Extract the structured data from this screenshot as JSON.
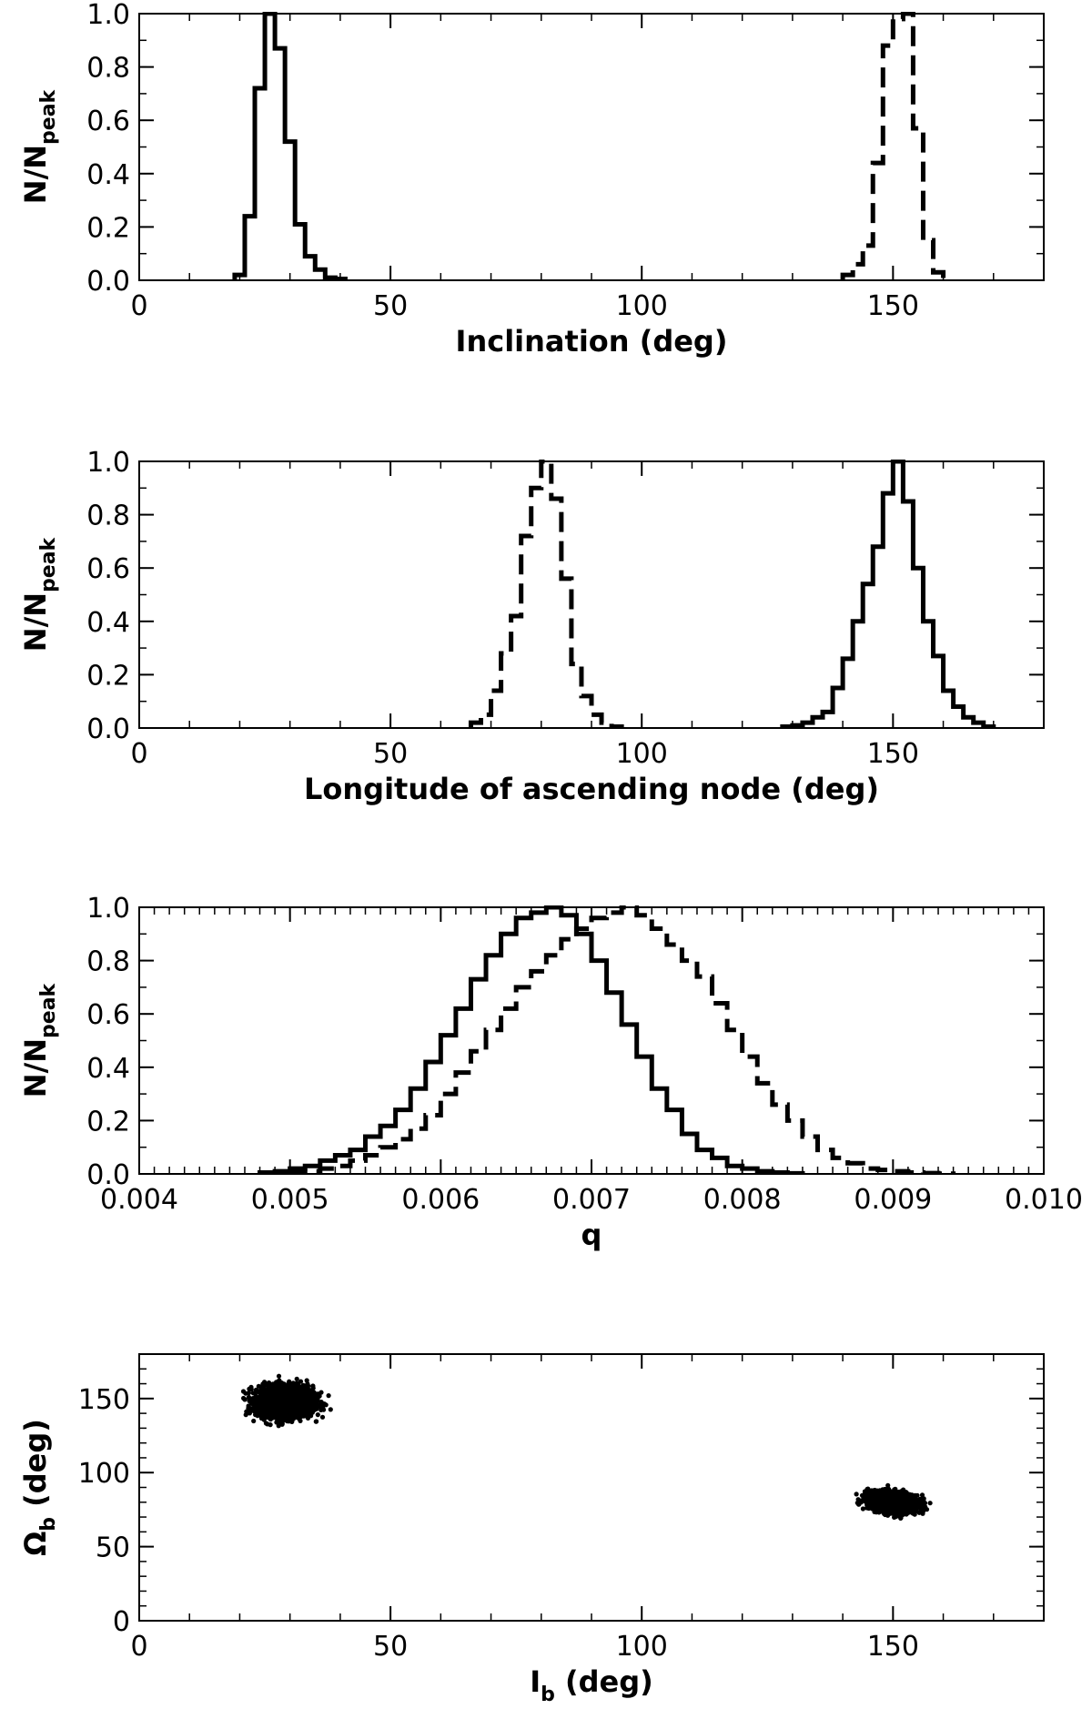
{
  "chart_data": [
    {
      "type": "step-histogram",
      "xlabel": "Inclination (deg)",
      "ylabel": "N/N",
      "ylabel_sub": "peak",
      "xlim": [
        0,
        180
      ],
      "ylim": [
        0,
        1.0
      ],
      "xticks": [
        0,
        50,
        100,
        150
      ],
      "xtick_labels": [
        "0",
        "50",
        "100",
        "150"
      ],
      "yticks": [
        0,
        0.2,
        0.4,
        0.6,
        0.8,
        1.0
      ],
      "ytick_labels": [
        "0.0",
        "0.2",
        "0.4",
        "0.6",
        "0.8",
        "1.0"
      ],
      "x_minor_step": 10,
      "y_minor_step": 0.1,
      "series": [
        {
          "name": "solid",
          "style": "solid",
          "edges": [
            19,
            21,
            23,
            25,
            27,
            29,
            31,
            33,
            35,
            37,
            39,
            41
          ],
          "values": [
            0.02,
            0.24,
            0.72,
            1.0,
            0.87,
            0.52,
            0.21,
            0.09,
            0.04,
            0.01,
            0.005
          ]
        },
        {
          "name": "dashed",
          "style": "dashed",
          "edges": [
            140,
            142,
            144,
            146,
            148,
            150,
            152,
            154,
            156,
            158,
            160
          ],
          "values": [
            0.02,
            0.06,
            0.13,
            0.44,
            0.88,
            0.98,
            1.0,
            0.57,
            0.15,
            0.03
          ]
        }
      ]
    },
    {
      "type": "step-histogram",
      "xlabel": "Longitude of ascending node (deg)",
      "ylabel": "N/N",
      "ylabel_sub": "peak",
      "xlim": [
        0,
        180
      ],
      "ylim": [
        0,
        1.0
      ],
      "xticks": [
        0,
        50,
        100,
        150
      ],
      "xtick_labels": [
        "0",
        "50",
        "100",
        "150"
      ],
      "yticks": [
        0,
        0.2,
        0.4,
        0.6,
        0.8,
        1.0
      ],
      "ytick_labels": [
        "0.0",
        "0.2",
        "0.4",
        "0.6",
        "0.8",
        "1.0"
      ],
      "x_minor_step": 10,
      "y_minor_step": 0.1,
      "series": [
        {
          "name": "dashed",
          "style": "dashed",
          "edges": [
            66,
            68,
            70,
            72,
            74,
            76,
            78,
            80,
            82,
            84,
            86,
            88,
            90,
            92,
            94,
            96
          ],
          "values": [
            0.02,
            0.05,
            0.14,
            0.28,
            0.42,
            0.72,
            0.9,
            1.0,
            0.86,
            0.56,
            0.24,
            0.12,
            0.05,
            0.02,
            0.005
          ]
        },
        {
          "name": "solid",
          "style": "solid",
          "edges": [
            128,
            130,
            132,
            134,
            136,
            138,
            140,
            142,
            144,
            146,
            148,
            150,
            152,
            154,
            156,
            158,
            160,
            162,
            164,
            166,
            168,
            170
          ],
          "values": [
            0.005,
            0.01,
            0.02,
            0.04,
            0.06,
            0.15,
            0.26,
            0.4,
            0.54,
            0.68,
            0.88,
            1.0,
            0.85,
            0.6,
            0.4,
            0.27,
            0.14,
            0.08,
            0.04,
            0.02,
            0.005
          ]
        }
      ]
    },
    {
      "type": "step-histogram",
      "xlabel": "q",
      "ylabel": "N/N",
      "ylabel_sub": "peak",
      "xlim": [
        0.004,
        0.01
      ],
      "ylim": [
        0,
        1.0
      ],
      "xticks": [
        0.004,
        0.005,
        0.006,
        0.007,
        0.008,
        0.009,
        0.01
      ],
      "xtick_labels": [
        "0.004",
        "0.005",
        "0.006",
        "0.007",
        "0.008",
        "0.009",
        "0.010"
      ],
      "yticks": [
        0,
        0.2,
        0.4,
        0.6,
        0.8,
        1.0
      ],
      "ytick_labels": [
        "0.0",
        "0.2",
        "0.4",
        "0.6",
        "0.8",
        "1.0"
      ],
      "x_minor_step": 0.0001,
      "y_minor_step": 0.1,
      "series": [
        {
          "name": "solid",
          "style": "solid",
          "edges": [
            0.0048,
            0.0049,
            0.005,
            0.0051,
            0.0052,
            0.0053,
            0.0054,
            0.0055,
            0.0056,
            0.0057,
            0.0058,
            0.0059,
            0.006,
            0.0061,
            0.0062,
            0.0063,
            0.0064,
            0.0065,
            0.0066,
            0.0067,
            0.0068,
            0.0069,
            0.007,
            0.0071,
            0.0072,
            0.0073,
            0.0074,
            0.0075,
            0.0076,
            0.0077,
            0.0078,
            0.0079,
            0.008,
            0.0081,
            0.0082,
            0.0083,
            0.0084
          ],
          "values": [
            0.005,
            0.01,
            0.02,
            0.03,
            0.05,
            0.07,
            0.09,
            0.14,
            0.18,
            0.24,
            0.32,
            0.42,
            0.52,
            0.62,
            0.73,
            0.82,
            0.9,
            0.96,
            0.98,
            1.0,
            0.97,
            0.9,
            0.8,
            0.68,
            0.56,
            0.44,
            0.32,
            0.24,
            0.15,
            0.09,
            0.06,
            0.03,
            0.02,
            0.01,
            0.005,
            0.002
          ]
        },
        {
          "name": "dashed",
          "style": "dashed",
          "edges": [
            0.005,
            0.0051,
            0.0052,
            0.0053,
            0.0054,
            0.0055,
            0.0056,
            0.0057,
            0.0058,
            0.0059,
            0.006,
            0.0061,
            0.0062,
            0.0063,
            0.0064,
            0.0065,
            0.0066,
            0.0067,
            0.0068,
            0.0069,
            0.007,
            0.0071,
            0.0072,
            0.0073,
            0.0074,
            0.0075,
            0.0076,
            0.0077,
            0.0078,
            0.0079,
            0.008,
            0.0081,
            0.0082,
            0.0083,
            0.0084,
            0.0085,
            0.0086,
            0.0087,
            0.0088,
            0.0089,
            0.009,
            0.0091,
            0.0092,
            0.0093,
            0.0094
          ],
          "values": [
            0.005,
            0.01,
            0.02,
            0.03,
            0.05,
            0.07,
            0.1,
            0.13,
            0.17,
            0.22,
            0.3,
            0.38,
            0.46,
            0.54,
            0.62,
            0.7,
            0.76,
            0.82,
            0.88,
            0.92,
            0.96,
            0.98,
            1.0,
            0.97,
            0.92,
            0.86,
            0.8,
            0.74,
            0.64,
            0.54,
            0.44,
            0.34,
            0.26,
            0.2,
            0.14,
            0.09,
            0.06,
            0.04,
            0.02,
            0.015,
            0.01,
            0.005,
            0.003,
            0.001
          ]
        }
      ]
    },
    {
      "type": "scatter",
      "xlabel": "I",
      "xlabel_sub": "b",
      "xlabel_suffix": " (deg)",
      "ylabel": "Ω",
      "ylabel_sub": "b",
      "ylabel_suffix": " (deg)",
      "xlim": [
        0,
        180
      ],
      "ylim": [
        0,
        180
      ],
      "xticks": [
        0,
        50,
        100,
        150
      ],
      "xtick_labels": [
        "0",
        "50",
        "100",
        "150"
      ],
      "yticks": [
        0,
        50,
        100,
        150
      ],
      "ytick_labels": [
        "0",
        "50",
        "100",
        "150"
      ],
      "x_minor_step": 10,
      "y_minor_step": 10,
      "clusters": [
        {
          "center": [
            29,
            148
          ],
          "spread": [
            5.0,
            9.5
          ],
          "tilt": -0.02,
          "n": 2200
        },
        {
          "center": [
            150,
            80
          ],
          "spread": [
            4.5,
            6.0
          ],
          "tilt": -0.35,
          "n": 1700
        }
      ]
    }
  ]
}
